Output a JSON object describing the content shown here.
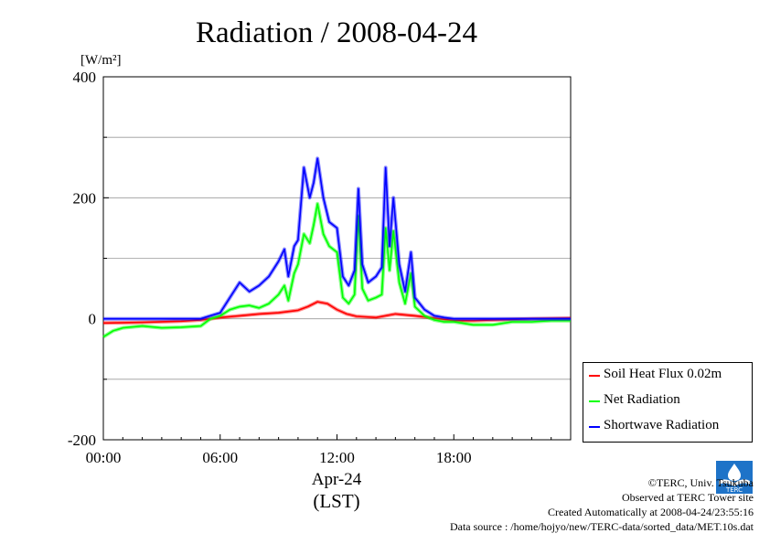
{
  "chart_data": {
    "type": "line",
    "title": "Radiation / 2008-04-24",
    "ylabel": "[W/m²]",
    "xlabel_date": "Apr-24",
    "xlabel_tz": "(LST)",
    "ylim": [
      -200,
      400
    ],
    "xlim": [
      0,
      24
    ],
    "y_ticks": [
      -200,
      0,
      200,
      400
    ],
    "y_tick_labels": [
      "-200",
      "0",
      "200",
      "400"
    ],
    "y_grid": [
      -100,
      100,
      300
    ],
    "x_ticks": [
      0,
      6,
      12,
      18
    ],
    "x_tick_labels": [
      "00:00",
      "06:00",
      "12:00",
      "18:00"
    ],
    "grid": true,
    "legend_position": "right-bottom",
    "series": [
      {
        "name": "Soil Heat Flux 0.02m",
        "color": "#ff0000",
        "x": [
          0,
          2,
          4,
          5,
          6,
          7,
          8,
          9,
          10,
          10.5,
          11,
          11.5,
          12,
          12.5,
          13,
          14,
          15,
          16,
          17,
          18,
          19,
          20,
          22,
          24
        ],
        "y": [
          -7,
          -6,
          -4,
          -2,
          2,
          5,
          8,
          10,
          14,
          20,
          28,
          25,
          15,
          8,
          4,
          2,
          8,
          5,
          1,
          -3,
          -3,
          -2,
          0,
          1
        ]
      },
      {
        "name": "Net Radiation",
        "color": "#00ff00",
        "x": [
          0,
          0.5,
          1,
          2,
          3,
          4,
          5,
          5.5,
          6,
          6.5,
          7,
          7.5,
          8,
          8.5,
          9,
          9.3,
          9.5,
          9.8,
          10,
          10.3,
          10.6,
          10.8,
          11,
          11.3,
          11.6,
          12,
          12.3,
          12.6,
          12.9,
          13.1,
          13.3,
          13.6,
          14,
          14.3,
          14.5,
          14.7,
          14.9,
          15.2,
          15.5,
          15.8,
          16,
          16.5,
          17,
          17.5,
          18,
          19,
          20,
          21,
          22,
          23,
          24
        ],
        "y": [
          -30,
          -20,
          -15,
          -12,
          -15,
          -14,
          -12,
          0,
          5,
          15,
          20,
          22,
          18,
          25,
          40,
          55,
          30,
          75,
          90,
          140,
          125,
          155,
          190,
          140,
          120,
          110,
          35,
          25,
          40,
          170,
          50,
          30,
          35,
          40,
          150,
          80,
          145,
          60,
          25,
          75,
          20,
          5,
          -2,
          -5,
          -5,
          -10,
          -10,
          -5,
          -5,
          -3,
          -3
        ]
      },
      {
        "name": "Shortwave Radiation",
        "color": "#0000ff",
        "x": [
          0,
          2,
          4,
          5,
          5.5,
          6,
          6.5,
          7,
          7.5,
          8,
          8.5,
          9,
          9.3,
          9.5,
          9.8,
          10,
          10.3,
          10.6,
          10.8,
          11,
          11.3,
          11.6,
          12,
          12.3,
          12.6,
          12.9,
          13.1,
          13.3,
          13.6,
          14,
          14.3,
          14.5,
          14.7,
          14.9,
          15.2,
          15.5,
          15.8,
          16,
          16.5,
          17,
          17.5,
          18,
          19,
          20,
          22,
          24
        ],
        "y": [
          0,
          0,
          0,
          0,
          5,
          10,
          35,
          60,
          45,
          55,
          70,
          95,
          115,
          70,
          120,
          130,
          250,
          200,
          225,
          265,
          200,
          160,
          150,
          70,
          55,
          80,
          215,
          90,
          60,
          70,
          85,
          250,
          120,
          200,
          90,
          45,
          110,
          35,
          15,
          5,
          2,
          0,
          0,
          0,
          0,
          0
        ]
      }
    ]
  },
  "credits": {
    "copyright": "©TERC, Univ. Tsukuba",
    "observed": "Observed at TERC Tower site",
    "created": "Created Automatically at 2008-04-24/23:55:16",
    "source": "Data source : /home/hojyo/new/TERC-data/sorted_data/MET.10s.dat"
  },
  "logo": {
    "text": "TERC",
    "color": "#1e73c8"
  }
}
